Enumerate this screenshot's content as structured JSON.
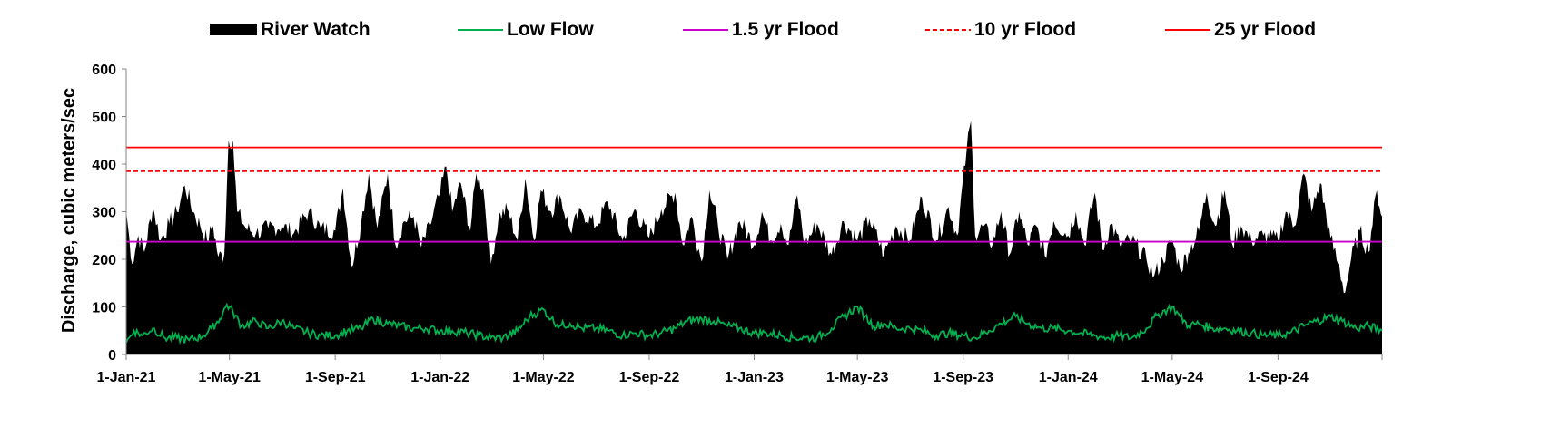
{
  "chart_data": {
    "type": "area",
    "title": "",
    "xlabel": "",
    "ylabel": "Discharge, cubic meters/sec",
    "ylim": [
      0,
      600
    ],
    "yticks": [
      0,
      100,
      200,
      300,
      400,
      500,
      600
    ],
    "xlim": [
      "2021-01-01",
      "2024-12-31"
    ],
    "xticks": [
      {
        "date": "2021-01-01",
        "label": "1-Jan-21"
      },
      {
        "date": "2021-05-01",
        "label": "1-May-21"
      },
      {
        "date": "2021-09-01",
        "label": "1-Sep-21"
      },
      {
        "date": "2022-01-01",
        "label": "1-Jan-22"
      },
      {
        "date": "2022-05-01",
        "label": "1-May-22"
      },
      {
        "date": "2022-09-01",
        "label": "1-Sep-22"
      },
      {
        "date": "2023-01-01",
        "label": "1-Jan-23"
      },
      {
        "date": "2023-05-01",
        "label": "1-May-23"
      },
      {
        "date": "2023-09-01",
        "label": "1-Sep-23"
      },
      {
        "date": "2024-01-01",
        "label": "1-Jan-24"
      },
      {
        "date": "2024-05-01",
        "label": "1-May-24"
      },
      {
        "date": "2024-09-01",
        "label": "1-Sep-24"
      }
    ],
    "grid": false,
    "legend_position": "top",
    "series": [
      {
        "name": "River Watch",
        "kind": "area",
        "color": "#000000",
        "points": [
          [
            "2021-01-01",
            300
          ],
          [
            "2021-01-08",
            190
          ],
          [
            "2021-01-15",
            250
          ],
          [
            "2021-01-22",
            215
          ],
          [
            "2021-02-01",
            310
          ],
          [
            "2021-02-10",
            240
          ],
          [
            "2021-02-20",
            275
          ],
          [
            "2021-03-01",
            300
          ],
          [
            "2021-03-10",
            355
          ],
          [
            "2021-03-20",
            300
          ],
          [
            "2021-03-28",
            270
          ],
          [
            "2021-04-05",
            240
          ],
          [
            "2021-04-12",
            270
          ],
          [
            "2021-04-18",
            205
          ],
          [
            "2021-04-25",
            210
          ],
          [
            "2021-04-30",
            450
          ],
          [
            "2021-05-05",
            450
          ],
          [
            "2021-05-10",
            300
          ],
          [
            "2021-05-20",
            265
          ],
          [
            "2021-06-01",
            255
          ],
          [
            "2021-06-15",
            265
          ],
          [
            "2021-07-01",
            270
          ],
          [
            "2021-07-15",
            255
          ],
          [
            "2021-08-01",
            300
          ],
          [
            "2021-08-15",
            265
          ],
          [
            "2021-09-01",
            260
          ],
          [
            "2021-09-10",
            350
          ],
          [
            "2021-09-20",
            185
          ],
          [
            "2021-10-01",
            275
          ],
          [
            "2021-10-10",
            380
          ],
          [
            "2021-10-20",
            265
          ],
          [
            "2021-11-01",
            380
          ],
          [
            "2021-11-10",
            230
          ],
          [
            "2021-11-20",
            280
          ],
          [
            "2021-12-01",
            290
          ],
          [
            "2021-12-10",
            225
          ],
          [
            "2021-12-20",
            270
          ],
          [
            "2022-01-01",
            340
          ],
          [
            "2022-01-08",
            395
          ],
          [
            "2022-01-15",
            300
          ],
          [
            "2022-01-25",
            360
          ],
          [
            "2022-02-05",
            260
          ],
          [
            "2022-02-12",
            380
          ],
          [
            "2022-02-20",
            350
          ],
          [
            "2022-03-01",
            190
          ],
          [
            "2022-03-10",
            290
          ],
          [
            "2022-03-20",
            305
          ],
          [
            "2022-04-01",
            240
          ],
          [
            "2022-04-10",
            370
          ],
          [
            "2022-04-20",
            240
          ],
          [
            "2022-04-28",
            345
          ],
          [
            "2022-05-10",
            300
          ],
          [
            "2022-05-20",
            335
          ],
          [
            "2022-06-01",
            260
          ],
          [
            "2022-06-15",
            300
          ],
          [
            "2022-07-01",
            270
          ],
          [
            "2022-07-15",
            320
          ],
          [
            "2022-08-01",
            240
          ],
          [
            "2022-08-15",
            305
          ],
          [
            "2022-09-01",
            245
          ],
          [
            "2022-09-15",
            305
          ],
          [
            "2022-10-01",
            340
          ],
          [
            "2022-10-10",
            230
          ],
          [
            "2022-10-20",
            290
          ],
          [
            "2022-11-01",
            195
          ],
          [
            "2022-11-10",
            345
          ],
          [
            "2022-11-20",
            270
          ],
          [
            "2022-12-01",
            200
          ],
          [
            "2022-12-15",
            280
          ],
          [
            "2023-01-01",
            230
          ],
          [
            "2023-01-10",
            300
          ],
          [
            "2023-01-20",
            240
          ],
          [
            "2023-02-01",
            275
          ],
          [
            "2023-02-10",
            230
          ],
          [
            "2023-02-20",
            335
          ],
          [
            "2023-03-01",
            230
          ],
          [
            "2023-03-15",
            275
          ],
          [
            "2023-04-01",
            210
          ],
          [
            "2023-04-15",
            280
          ],
          [
            "2023-05-01",
            240
          ],
          [
            "2023-05-15",
            285
          ],
          [
            "2023-06-01",
            210
          ],
          [
            "2023-06-15",
            270
          ],
          [
            "2023-07-01",
            240
          ],
          [
            "2023-07-15",
            330
          ],
          [
            "2023-08-01",
            240
          ],
          [
            "2023-08-15",
            310
          ],
          [
            "2023-08-25",
            250
          ],
          [
            "2023-09-05",
            430
          ],
          [
            "2023-09-10",
            490
          ],
          [
            "2023-09-15",
            250
          ],
          [
            "2023-09-25",
            270
          ],
          [
            "2023-10-05",
            230
          ],
          [
            "2023-10-15",
            300
          ],
          [
            "2023-10-25",
            210
          ],
          [
            "2023-11-05",
            300
          ],
          [
            "2023-11-15",
            230
          ],
          [
            "2023-11-25",
            270
          ],
          [
            "2023-12-05",
            205
          ],
          [
            "2023-12-15",
            280
          ],
          [
            "2024-01-01",
            250
          ],
          [
            "2024-01-10",
            300
          ],
          [
            "2024-01-20",
            230
          ],
          [
            "2024-02-01",
            340
          ],
          [
            "2024-02-10",
            220
          ],
          [
            "2024-02-20",
            275
          ],
          [
            "2024-03-01",
            230
          ],
          [
            "2024-03-15",
            240
          ],
          [
            "2024-04-01",
            200
          ],
          [
            "2024-04-10",
            165
          ],
          [
            "2024-04-20",
            200
          ],
          [
            "2024-05-01",
            240
          ],
          [
            "2024-05-10",
            180
          ],
          [
            "2024-05-20",
            215
          ],
          [
            "2024-06-01",
            260
          ],
          [
            "2024-06-10",
            340
          ],
          [
            "2024-06-20",
            270
          ],
          [
            "2024-07-01",
            345
          ],
          [
            "2024-07-10",
            230
          ],
          [
            "2024-07-20",
            270
          ],
          [
            "2024-08-01",
            240
          ],
          [
            "2024-08-15",
            250
          ],
          [
            "2024-09-01",
            240
          ],
          [
            "2024-09-10",
            300
          ],
          [
            "2024-09-20",
            270
          ],
          [
            "2024-10-01",
            380
          ],
          [
            "2024-10-10",
            300
          ],
          [
            "2024-10-20",
            360
          ],
          [
            "2024-11-01",
            245
          ],
          [
            "2024-11-10",
            190
          ],
          [
            "2024-11-18",
            130
          ],
          [
            "2024-11-25",
            200
          ],
          [
            "2024-12-05",
            260
          ],
          [
            "2024-12-15",
            215
          ],
          [
            "2024-12-25",
            345
          ],
          [
            "2024-12-31",
            290
          ]
        ]
      },
      {
        "name": "Low Flow",
        "kind": "line",
        "color": "#00b050",
        "points": [
          [
            "2021-01-01",
            25
          ],
          [
            "2021-01-10",
            50
          ],
          [
            "2021-01-20",
            40
          ],
          [
            "2021-02-01",
            55
          ],
          [
            "2021-02-15",
            35
          ],
          [
            "2021-03-01",
            35
          ],
          [
            "2021-03-15",
            30
          ],
          [
            "2021-04-01",
            40
          ],
          [
            "2021-04-10",
            55
          ],
          [
            "2021-04-20",
            75
          ],
          [
            "2021-04-28",
            105
          ],
          [
            "2021-05-05",
            90
          ],
          [
            "2021-05-15",
            60
          ],
          [
            "2021-06-01",
            70
          ],
          [
            "2021-06-15",
            55
          ],
          [
            "2021-07-01",
            70
          ],
          [
            "2021-07-15",
            55
          ],
          [
            "2021-08-01",
            45
          ],
          [
            "2021-08-15",
            40
          ],
          [
            "2021-09-01",
            40
          ],
          [
            "2021-09-15",
            50
          ],
          [
            "2021-10-01",
            55
          ],
          [
            "2021-10-15",
            75
          ],
          [
            "2021-11-01",
            65
          ],
          [
            "2021-11-15",
            60
          ],
          [
            "2021-12-01",
            55
          ],
          [
            "2021-12-15",
            55
          ],
          [
            "2022-01-01",
            50
          ],
          [
            "2022-01-15",
            50
          ],
          [
            "2022-02-01",
            45
          ],
          [
            "2022-02-15",
            40
          ],
          [
            "2022-03-01",
            35
          ],
          [
            "2022-03-15",
            35
          ],
          [
            "2022-04-01",
            50
          ],
          [
            "2022-04-15",
            80
          ],
          [
            "2022-05-01",
            95
          ],
          [
            "2022-05-10",
            75
          ],
          [
            "2022-05-20",
            60
          ],
          [
            "2022-06-01",
            65
          ],
          [
            "2022-06-15",
            55
          ],
          [
            "2022-07-01",
            55
          ],
          [
            "2022-07-15",
            50
          ],
          [
            "2022-08-01",
            40
          ],
          [
            "2022-08-15",
            45
          ],
          [
            "2022-09-01",
            40
          ],
          [
            "2022-09-15",
            45
          ],
          [
            "2022-10-01",
            55
          ],
          [
            "2022-10-15",
            70
          ],
          [
            "2022-11-01",
            75
          ],
          [
            "2022-11-15",
            70
          ],
          [
            "2022-12-01",
            60
          ],
          [
            "2022-12-15",
            55
          ],
          [
            "2023-01-01",
            45
          ],
          [
            "2023-01-15",
            45
          ],
          [
            "2023-02-01",
            40
          ],
          [
            "2023-02-15",
            35
          ],
          [
            "2023-03-01",
            35
          ],
          [
            "2023-03-15",
            35
          ],
          [
            "2023-04-01",
            55
          ],
          [
            "2023-04-15",
            80
          ],
          [
            "2023-05-01",
            100
          ],
          [
            "2023-05-10",
            80
          ],
          [
            "2023-05-20",
            60
          ],
          [
            "2023-06-01",
            65
          ],
          [
            "2023-06-15",
            55
          ],
          [
            "2023-07-01",
            55
          ],
          [
            "2023-07-15",
            50
          ],
          [
            "2023-08-01",
            40
          ],
          [
            "2023-08-15",
            45
          ],
          [
            "2023-09-01",
            40
          ],
          [
            "2023-09-15",
            35
          ],
          [
            "2023-10-01",
            50
          ],
          [
            "2023-10-15",
            65
          ],
          [
            "2023-11-01",
            80
          ],
          [
            "2023-11-15",
            65
          ],
          [
            "2023-12-01",
            55
          ],
          [
            "2023-12-15",
            55
          ],
          [
            "2024-01-01",
            50
          ],
          [
            "2024-01-15",
            45
          ],
          [
            "2024-02-01",
            40
          ],
          [
            "2024-02-15",
            35
          ],
          [
            "2024-03-01",
            40
          ],
          [
            "2024-03-15",
            35
          ],
          [
            "2024-04-01",
            55
          ],
          [
            "2024-04-15",
            85
          ],
          [
            "2024-05-01",
            100
          ],
          [
            "2024-05-10",
            80
          ],
          [
            "2024-05-20",
            60
          ],
          [
            "2024-06-01",
            65
          ],
          [
            "2024-06-15",
            55
          ],
          [
            "2024-07-01",
            55
          ],
          [
            "2024-07-15",
            50
          ],
          [
            "2024-08-01",
            45
          ],
          [
            "2024-08-15",
            40
          ],
          [
            "2024-09-01",
            40
          ],
          [
            "2024-09-15",
            45
          ],
          [
            "2024-10-01",
            60
          ],
          [
            "2024-10-15",
            70
          ],
          [
            "2024-11-01",
            80
          ],
          [
            "2024-11-15",
            70
          ],
          [
            "2024-12-01",
            55
          ],
          [
            "2024-12-15",
            60
          ],
          [
            "2024-12-31",
            50
          ]
        ]
      },
      {
        "name": "1.5 yr Flood",
        "kind": "hline",
        "color": "#cc00cc",
        "dash": "solid",
        "value": 237
      },
      {
        "name": "10 yr Flood",
        "kind": "hline",
        "color": "#ff0000",
        "dash": "dashed",
        "value": 385
      },
      {
        "name": "25 yr Flood",
        "kind": "hline",
        "color": "#ff0000",
        "dash": "solid",
        "value": 435
      }
    ]
  }
}
